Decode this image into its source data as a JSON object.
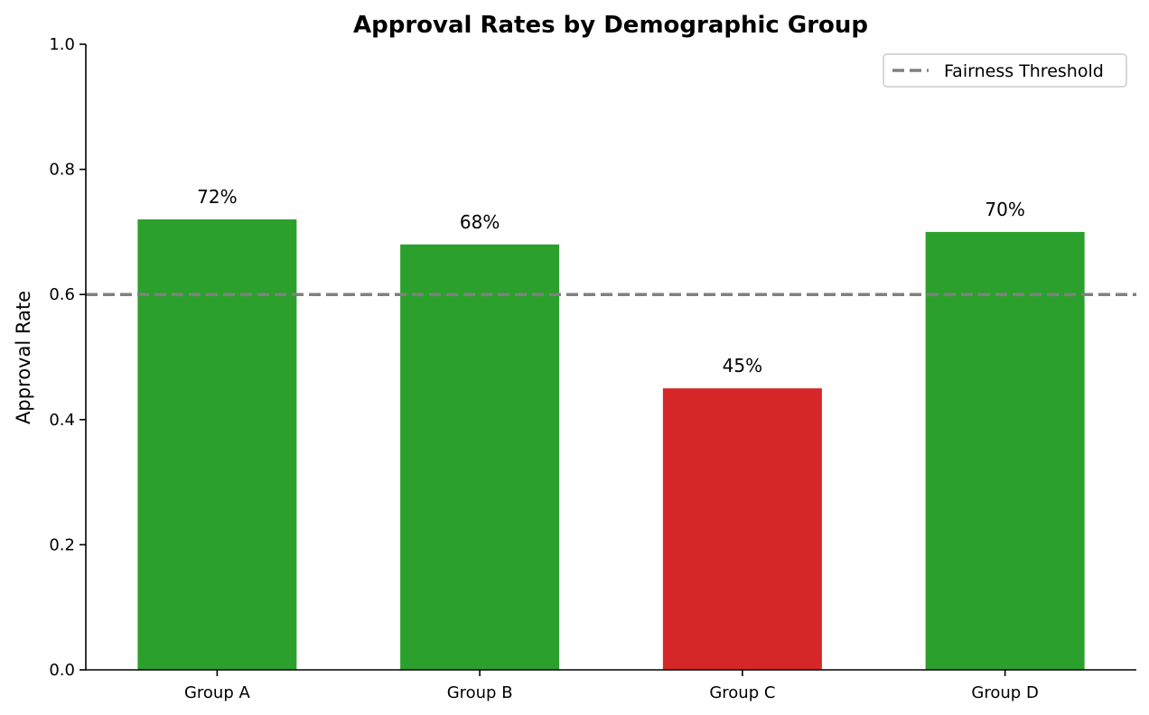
{
  "chart_data": {
    "type": "bar",
    "title": "Approval Rates by Demographic Group",
    "xlabel": "",
    "ylabel": "Approval Rate",
    "categories": [
      "Group A",
      "Group B",
      "Group C",
      "Group D"
    ],
    "values": [
      0.72,
      0.68,
      0.45,
      0.7
    ],
    "data_labels": [
      "72%",
      "68%",
      "45%",
      "70%"
    ],
    "bar_colors": [
      "#2ca02c",
      "#2ca02c",
      "#d62728",
      "#2ca02c"
    ],
    "ylim": [
      0,
      1.0
    ],
    "yticks": [
      0.0,
      0.2,
      0.4,
      0.6,
      0.8,
      1.0
    ],
    "ytick_labels": [
      "0.0",
      "0.2",
      "0.4",
      "0.6",
      "0.8",
      "1.0"
    ],
    "reference_line": {
      "label": "Fairness Threshold",
      "y": 0.6,
      "color": "#808080",
      "style": "dashed"
    },
    "legend": {
      "placement": "top-right",
      "entries": [
        "Fairness Threshold"
      ]
    },
    "grid": false
  }
}
